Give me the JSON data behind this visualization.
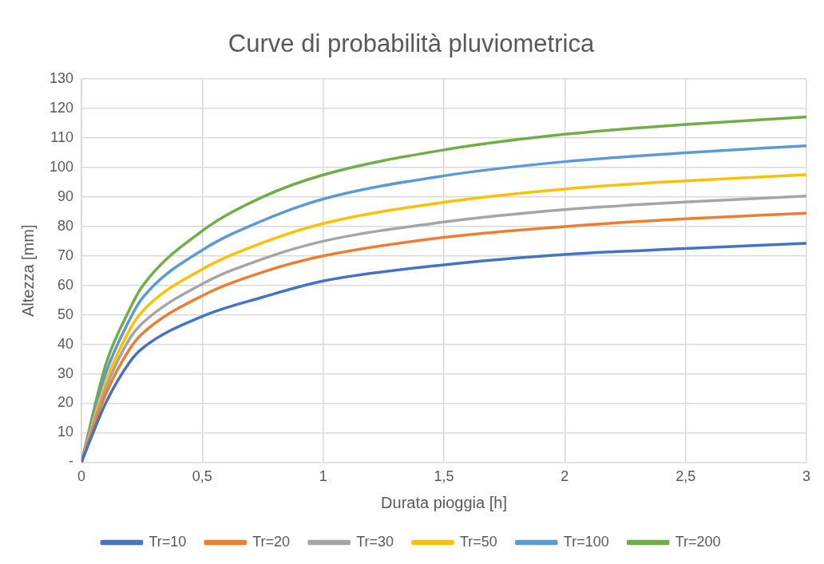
{
  "chart_data": {
    "type": "line",
    "title": "Curve di probabilità pluviometrica",
    "xlabel": "Durata pioggia [h]",
    "ylabel": "Altezza [mm]",
    "x": [
      0,
      0.1,
      0.2,
      0.25,
      0.5,
      0.75,
      1,
      1.5,
      2,
      2.5,
      3
    ],
    "xlim": [
      0,
      3
    ],
    "xticks": [
      {
        "value": 0,
        "label": "0"
      },
      {
        "value": 0.5,
        "label": "0,5"
      },
      {
        "value": 1,
        "label": "1"
      },
      {
        "value": 1.5,
        "label": "1,5"
      },
      {
        "value": 2,
        "label": "2"
      },
      {
        "value": 2.5,
        "label": "2,5"
      },
      {
        "value": 3,
        "label": "3"
      }
    ],
    "ylim": [
      0,
      130
    ],
    "yticks": [
      {
        "value": 0,
        "label": "-"
      },
      10,
      20,
      30,
      40,
      50,
      60,
      70,
      80,
      90,
      100,
      110,
      120,
      130
    ],
    "grid": true,
    "legend": "bottom",
    "marker": "none",
    "line_style": "solid",
    "series": [
      {
        "name": "Tr=10",
        "color": "#4472c4",
        "values": [
          0,
          20,
          34,
          38.5,
          49.5,
          56,
          61.5,
          67,
          70.5,
          72.5,
          74.3
        ]
      },
      {
        "name": "Tr=20",
        "color": "#ed7d31",
        "values": [
          0,
          23,
          38.5,
          43.5,
          56.5,
          64.5,
          70,
          76.3,
          80,
          82.6,
          84.5
        ]
      },
      {
        "name": "Tr=30",
        "color": "#a5a5a5",
        "values": [
          0,
          25,
          42,
          47,
          60.5,
          69,
          75,
          81.5,
          85.7,
          88.3,
          90.3
        ]
      },
      {
        "name": "Tr=50",
        "color": "#ffc000",
        "values": [
          0,
          27,
          45,
          51,
          65.5,
          74.5,
          81,
          88.2,
          92.7,
          95.5,
          97.6
        ]
      },
      {
        "name": "Tr=100",
        "color": "#5b9bd5",
        "values": [
          0,
          30,
          48.5,
          55.5,
          72,
          82,
          89.3,
          97.2,
          102,
          105,
          107.4
        ]
      },
      {
        "name": "Tr=200",
        "color": "#70ad47",
        "values": [
          0,
          33,
          52,
          59.5,
          78.5,
          90,
          97.5,
          106,
          111.3,
          114.6,
          117.2
        ]
      }
    ]
  }
}
